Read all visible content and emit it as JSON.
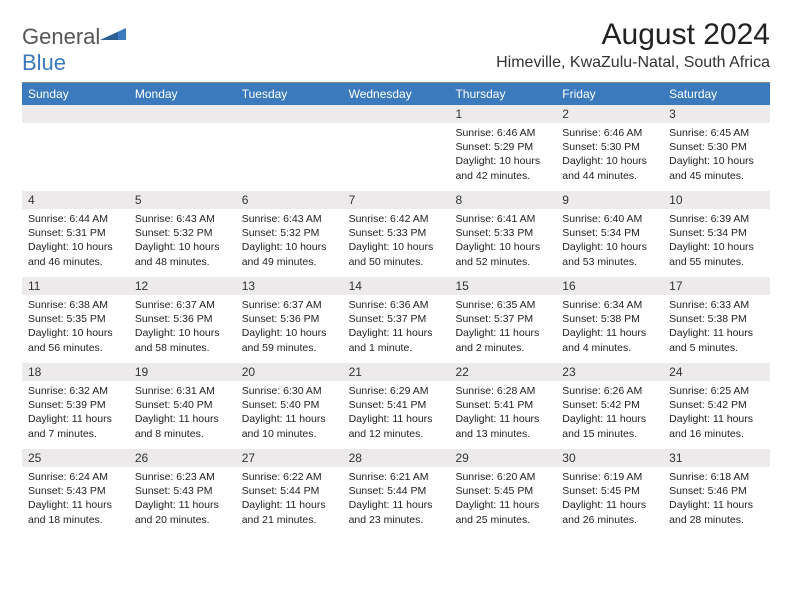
{
  "logo": {
    "text1": "General",
    "text2": "Blue"
  },
  "title": "August 2024",
  "location": "Himeville, KwaZulu-Natal, South Africa",
  "colors": {
    "header_bg": "#3a7abd",
    "daynum_bg": "#eceaea",
    "text": "#1a1a1a",
    "location_text": "#333333",
    "logo_blue": "#3a7abd",
    "logo_gray": "#555555"
  },
  "dows": [
    "Sunday",
    "Monday",
    "Tuesday",
    "Wednesday",
    "Thursday",
    "Friday",
    "Saturday"
  ],
  "weeks": [
    [
      {
        "num": "",
        "lines": []
      },
      {
        "num": "",
        "lines": []
      },
      {
        "num": "",
        "lines": []
      },
      {
        "num": "",
        "lines": []
      },
      {
        "num": "1",
        "lines": [
          "Sunrise: 6:46 AM",
          "Sunset: 5:29 PM",
          "Daylight: 10 hours",
          "and 42 minutes."
        ]
      },
      {
        "num": "2",
        "lines": [
          "Sunrise: 6:46 AM",
          "Sunset: 5:30 PM",
          "Daylight: 10 hours",
          "and 44 minutes."
        ]
      },
      {
        "num": "3",
        "lines": [
          "Sunrise: 6:45 AM",
          "Sunset: 5:30 PM",
          "Daylight: 10 hours",
          "and 45 minutes."
        ]
      }
    ],
    [
      {
        "num": "4",
        "lines": [
          "Sunrise: 6:44 AM",
          "Sunset: 5:31 PM",
          "Daylight: 10 hours",
          "and 46 minutes."
        ]
      },
      {
        "num": "5",
        "lines": [
          "Sunrise: 6:43 AM",
          "Sunset: 5:32 PM",
          "Daylight: 10 hours",
          "and 48 minutes."
        ]
      },
      {
        "num": "6",
        "lines": [
          "Sunrise: 6:43 AM",
          "Sunset: 5:32 PM",
          "Daylight: 10 hours",
          "and 49 minutes."
        ]
      },
      {
        "num": "7",
        "lines": [
          "Sunrise: 6:42 AM",
          "Sunset: 5:33 PM",
          "Daylight: 10 hours",
          "and 50 minutes."
        ]
      },
      {
        "num": "8",
        "lines": [
          "Sunrise: 6:41 AM",
          "Sunset: 5:33 PM",
          "Daylight: 10 hours",
          "and 52 minutes."
        ]
      },
      {
        "num": "9",
        "lines": [
          "Sunrise: 6:40 AM",
          "Sunset: 5:34 PM",
          "Daylight: 10 hours",
          "and 53 minutes."
        ]
      },
      {
        "num": "10",
        "lines": [
          "Sunrise: 6:39 AM",
          "Sunset: 5:34 PM",
          "Daylight: 10 hours",
          "and 55 minutes."
        ]
      }
    ],
    [
      {
        "num": "11",
        "lines": [
          "Sunrise: 6:38 AM",
          "Sunset: 5:35 PM",
          "Daylight: 10 hours",
          "and 56 minutes."
        ]
      },
      {
        "num": "12",
        "lines": [
          "Sunrise: 6:37 AM",
          "Sunset: 5:36 PM",
          "Daylight: 10 hours",
          "and 58 minutes."
        ]
      },
      {
        "num": "13",
        "lines": [
          "Sunrise: 6:37 AM",
          "Sunset: 5:36 PM",
          "Daylight: 10 hours",
          "and 59 minutes."
        ]
      },
      {
        "num": "14",
        "lines": [
          "Sunrise: 6:36 AM",
          "Sunset: 5:37 PM",
          "Daylight: 11 hours",
          "and 1 minute."
        ]
      },
      {
        "num": "15",
        "lines": [
          "Sunrise: 6:35 AM",
          "Sunset: 5:37 PM",
          "Daylight: 11 hours",
          "and 2 minutes."
        ]
      },
      {
        "num": "16",
        "lines": [
          "Sunrise: 6:34 AM",
          "Sunset: 5:38 PM",
          "Daylight: 11 hours",
          "and 4 minutes."
        ]
      },
      {
        "num": "17",
        "lines": [
          "Sunrise: 6:33 AM",
          "Sunset: 5:38 PM",
          "Daylight: 11 hours",
          "and 5 minutes."
        ]
      }
    ],
    [
      {
        "num": "18",
        "lines": [
          "Sunrise: 6:32 AM",
          "Sunset: 5:39 PM",
          "Daylight: 11 hours",
          "and 7 minutes."
        ]
      },
      {
        "num": "19",
        "lines": [
          "Sunrise: 6:31 AM",
          "Sunset: 5:40 PM",
          "Daylight: 11 hours",
          "and 8 minutes."
        ]
      },
      {
        "num": "20",
        "lines": [
          "Sunrise: 6:30 AM",
          "Sunset: 5:40 PM",
          "Daylight: 11 hours",
          "and 10 minutes."
        ]
      },
      {
        "num": "21",
        "lines": [
          "Sunrise: 6:29 AM",
          "Sunset: 5:41 PM",
          "Daylight: 11 hours",
          "and 12 minutes."
        ]
      },
      {
        "num": "22",
        "lines": [
          "Sunrise: 6:28 AM",
          "Sunset: 5:41 PM",
          "Daylight: 11 hours",
          "and 13 minutes."
        ]
      },
      {
        "num": "23",
        "lines": [
          "Sunrise: 6:26 AM",
          "Sunset: 5:42 PM",
          "Daylight: 11 hours",
          "and 15 minutes."
        ]
      },
      {
        "num": "24",
        "lines": [
          "Sunrise: 6:25 AM",
          "Sunset: 5:42 PM",
          "Daylight: 11 hours",
          "and 16 minutes."
        ]
      }
    ],
    [
      {
        "num": "25",
        "lines": [
          "Sunrise: 6:24 AM",
          "Sunset: 5:43 PM",
          "Daylight: 11 hours",
          "and 18 minutes."
        ]
      },
      {
        "num": "26",
        "lines": [
          "Sunrise: 6:23 AM",
          "Sunset: 5:43 PM",
          "Daylight: 11 hours",
          "and 20 minutes."
        ]
      },
      {
        "num": "27",
        "lines": [
          "Sunrise: 6:22 AM",
          "Sunset: 5:44 PM",
          "Daylight: 11 hours",
          "and 21 minutes."
        ]
      },
      {
        "num": "28",
        "lines": [
          "Sunrise: 6:21 AM",
          "Sunset: 5:44 PM",
          "Daylight: 11 hours",
          "and 23 minutes."
        ]
      },
      {
        "num": "29",
        "lines": [
          "Sunrise: 6:20 AM",
          "Sunset: 5:45 PM",
          "Daylight: 11 hours",
          "and 25 minutes."
        ]
      },
      {
        "num": "30",
        "lines": [
          "Sunrise: 6:19 AM",
          "Sunset: 5:45 PM",
          "Daylight: 11 hours",
          "and 26 minutes."
        ]
      },
      {
        "num": "31",
        "lines": [
          "Sunrise: 6:18 AM",
          "Sunset: 5:46 PM",
          "Daylight: 11 hours",
          "and 28 minutes."
        ]
      }
    ]
  ]
}
